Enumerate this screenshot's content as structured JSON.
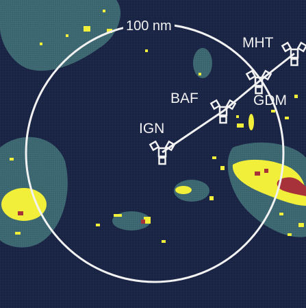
{
  "range_ring": {
    "label": "100 nm"
  },
  "waypoints": [
    {
      "id": "ign",
      "label": "IGN"
    },
    {
      "id": "baf",
      "label": "BAF"
    },
    {
      "id": "gdm",
      "label": "GDM"
    },
    {
      "id": "mht",
      "label": "MHT"
    }
  ],
  "colors": {
    "background": "#1b2545",
    "range_ring": "#f2f2f2",
    "route_line": "#f2f2f2",
    "weather_light": "#3e6a73",
    "weather_moderate": "#f2ef3a",
    "weather_heavy": "#a8323a"
  },
  "icons": {
    "waypoint": "navaid-icon"
  }
}
